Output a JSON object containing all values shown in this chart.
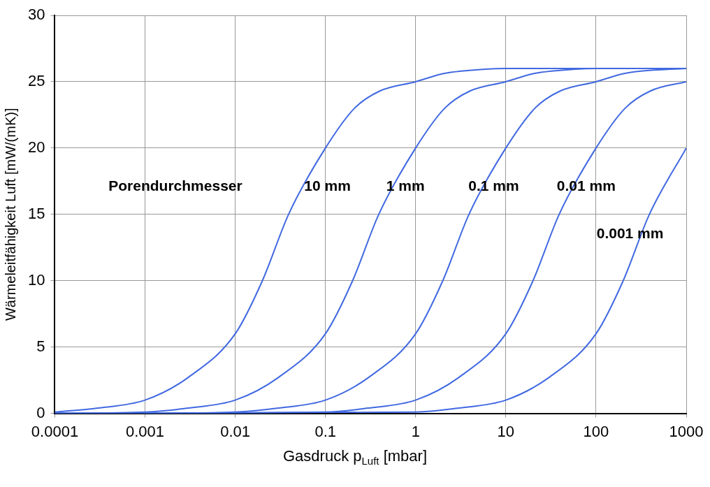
{
  "chart_data": {
    "type": "line",
    "xlabel": "Gasdruck p$_{Luft}$ [mbar]",
    "ylabel": "Wärmeleitfähigkeit Luft [mW/(mK)]",
    "log": "x",
    "xlim": [
      0.0001,
      1000
    ],
    "xticks": [
      0.0001,
      0.001,
      0.01,
      0.1,
      1,
      10,
      100,
      1000
    ],
    "ylim": [
      0,
      30
    ],
    "yticks": [
      0,
      5,
      10,
      15,
      20,
      25,
      30
    ],
    "grid": true,
    "legend": false,
    "marker": "none",
    "line_style": "solid",
    "series": [
      {
        "color": "#4169e1",
        "x": [
          0.0001,
          0.0003,
          0.001,
          0.003,
          0.01,
          0.02,
          0.039,
          0.1,
          0.21,
          0.4,
          1,
          2,
          3.2,
          10,
          100
        ],
        "values": [
          0.1,
          0.4,
          1,
          2.7,
          6,
          10,
          15,
          20,
          23,
          24.3,
          25,
          25.6,
          25.8,
          26,
          26
        ]
      },
      {
        "color": "#4169e1",
        "x": [
          0.0001,
          0.001,
          0.003,
          0.01,
          0.03,
          0.1,
          0.2,
          0.39,
          1,
          2.1,
          4,
          10,
          20,
          32,
          100,
          1000
        ],
        "values": [
          0,
          0.1,
          0.4,
          1,
          2.7,
          6,
          10,
          15,
          20,
          23,
          24.3,
          25,
          25.6,
          25.8,
          26,
          26
        ]
      },
      {
        "color": "#4169e1",
        "x": [
          0.001,
          0.01,
          0.03,
          0.1,
          0.3,
          1,
          2,
          3.9,
          10,
          21,
          40,
          100,
          200,
          316,
          1000
        ],
        "values": [
          0,
          0.1,
          0.4,
          1,
          2.7,
          6,
          10,
          15,
          20,
          23,
          24.3,
          25,
          25.6,
          25.8,
          26
        ]
      },
      {
        "color": "#4169e1",
        "x": [
          0.0001,
          0.1,
          0.3,
          1,
          3,
          10,
          20,
          39,
          100,
          210,
          400,
          1000
        ],
        "values": [
          0,
          0.1,
          0.4,
          1,
          2.7,
          6,
          10,
          15,
          20,
          23,
          24.3,
          25
        ]
      },
      {
        "color": "#4169e1",
        "x": [
          0.0001,
          1,
          3,
          10,
          30,
          100,
          200,
          390,
          1000
        ],
        "values": [
          0,
          0.1,
          0.4,
          1,
          2.7,
          6,
          10,
          15,
          20
        ]
      }
    ],
    "annotations": [
      "Porendurchmesser",
      "10 mm",
      "1 mm",
      "0.1 mm",
      "0.01 mm",
      "0.001 mm"
    ]
  }
}
